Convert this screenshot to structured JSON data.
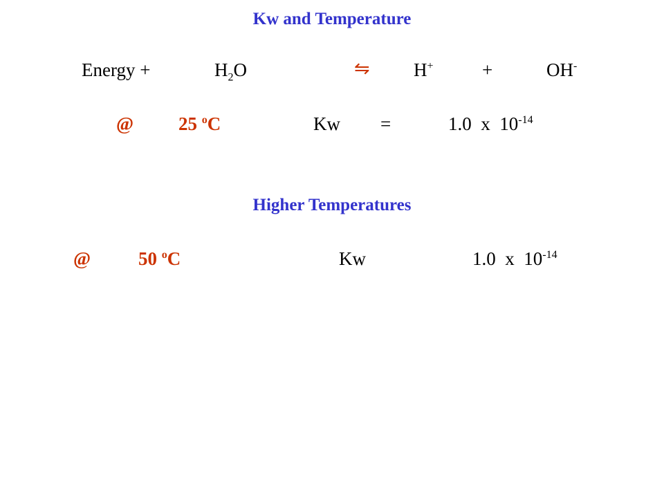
{
  "title": "Kw and Temperature",
  "equation": {
    "reactant": "Energy +",
    "water": {
      "base": "H",
      "sub": "2",
      "tail": "O"
    },
    "arrow": "⇋",
    "proton": {
      "base": "H",
      "sup": "+"
    },
    "plus": "+",
    "hydroxide": {
      "base": "OH",
      "sup": "-"
    }
  },
  "row1": {
    "at": "@",
    "temp": {
      "value": "25",
      "sup": "o",
      "unit": "C"
    },
    "kw": "Kw",
    "eq": "=",
    "kw_value": {
      "mantissa": "1.0  x  10",
      "exp": "-14"
    }
  },
  "subtitle": "Higher Temperatures",
  "row2": {
    "at": "@",
    "temp": {
      "value": "50",
      "sup": "o",
      "unit": "C"
    },
    "kw": "Kw",
    "kw_value": {
      "mantissa": "1.0  x  10",
      "exp": "-14"
    }
  }
}
